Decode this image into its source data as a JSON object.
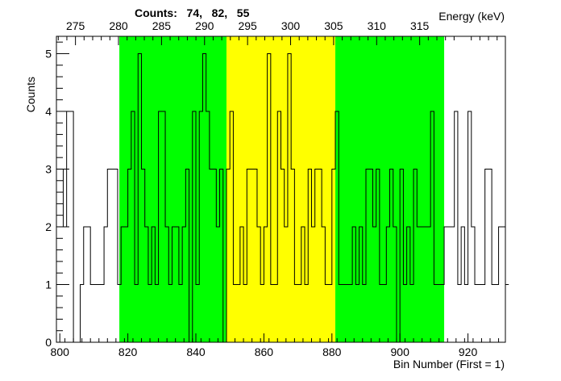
{
  "chart_data": {
    "type": "bar",
    "title": "Counts:   74,   82,   55",
    "xlabel": "Bin Number (First = 1)",
    "ylabel": "Counts",
    "x2label": "Energy (keV)",
    "xlim": [
      799,
      931
    ],
    "ylim": [
      0,
      5.3
    ],
    "grid": false,
    "x_ticks": [
      "800",
      "820",
      "840",
      "860",
      "880",
      "900",
      "920"
    ],
    "x_tick_values": [
      800,
      820,
      840,
      860,
      880,
      900,
      920
    ],
    "y_ticks": [
      "0",
      "1",
      "2",
      "3",
      "4",
      "5"
    ],
    "y_tick_values": [
      0,
      1,
      2,
      3,
      4,
      5
    ],
    "energy_ticks": [
      "275",
      "280",
      "285",
      "290",
      "295",
      "300",
      "305",
      "310",
      "315"
    ],
    "energy_tick_bins": [
      804.6,
      817.25,
      829.9,
      842.55,
      855.2,
      867.85,
      880.5,
      893.15,
      905.8
    ],
    "regions": [
      {
        "x0": 817.5,
        "x1": 849,
        "color": "#00ff00"
      },
      {
        "x0": 849,
        "x1": 881,
        "color": "#ffff00"
      },
      {
        "x0": 881,
        "x1": 913,
        "color": "#00ff00"
      }
    ],
    "bin_start": 799,
    "bin_width": 1,
    "values": [
      3,
      3,
      2,
      4,
      4,
      0,
      0,
      1,
      2,
      2,
      1,
      1,
      1,
      1,
      2,
      3,
      3,
      3,
      1,
      2,
      2,
      3,
      4,
      1,
      5,
      3,
      2,
      1,
      2,
      1,
      4,
      4,
      2,
      1,
      2,
      2,
      1,
      2,
      3,
      0,
      4,
      1,
      4,
      5,
      4,
      3,
      3,
      2,
      3,
      0,
      3,
      4,
      1,
      1,
      2,
      1,
      3,
      3,
      3,
      2,
      1,
      2,
      5,
      1,
      1,
      4,
      3,
      2,
      5,
      3,
      1,
      1,
      2,
      1,
      3,
      2,
      3,
      3,
      2,
      1,
      1,
      3,
      4,
      1,
      1,
      1,
      1,
      2,
      1,
      2,
      1,
      3,
      3,
      2,
      3,
      1,
      1,
      2,
      3,
      2,
      0,
      3,
      1,
      2,
      1,
      3,
      2,
      2,
      2,
      2,
      4,
      1,
      1,
      1,
      2,
      2,
      2,
      4,
      1,
      2,
      1,
      4,
      2,
      1,
      1,
      1,
      3,
      3,
      1,
      1,
      2,
      2,
      1
    ],
    "colors": {
      "line": "#000000",
      "background": "#ffffff"
    }
  }
}
